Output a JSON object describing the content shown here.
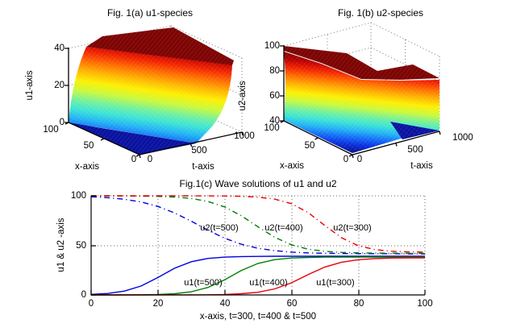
{
  "figure": {
    "fig_a": {
      "title": "Fig. 1(a) u1-species",
      "zlabel": "u1-axis",
      "xlabel": "x-axis",
      "tlabel": "t-axis",
      "zticks": [
        "0",
        "20",
        "40"
      ],
      "xticks": [
        "100",
        "50",
        "0"
      ],
      "tticks": [
        "0",
        "500",
        "1000"
      ]
    },
    "fig_b": {
      "title": "Fig. 1(b) u2-species",
      "zlabel": "u2-axis",
      "xlabel": "x-axis",
      "tlabel": "t-axis",
      "zticks": [
        "40",
        "60",
        "80",
        "100"
      ],
      "xticks": [
        "100",
        "50",
        "0"
      ],
      "tticks": [
        "0",
        "500",
        "1000"
      ]
    },
    "fig_c": {
      "title": "Fig.1(c) Wave solutions of u1 and u2",
      "ylabel": "u1 & u2 -axis",
      "xlabel": "x-axis,  t=300, t=400 &  t=500",
      "yticks": [
        "0",
        "50",
        "100"
      ],
      "xticks": [
        "0",
        "20",
        "40",
        "60",
        "80",
        "100"
      ],
      "curve_labels": [
        "u2(t=500)",
        "u2(t=400)",
        "u2(t=300)",
        "u1(t=500)",
        "u1(t=400)",
        "u1(t=300)"
      ]
    }
  },
  "chart_data": [
    {
      "type": "heatmap",
      "subtype": "3d-surface",
      "title": "Fig. 1(a) u1-species",
      "xlabel": "x-axis",
      "tlabel": "t-axis",
      "zlabel": "u1-axis",
      "xlim": [
        0,
        100
      ],
      "tlim": [
        0,
        1000
      ],
      "zlim": [
        0,
        40
      ],
      "xticks": [
        0,
        50,
        100
      ],
      "tticks": [
        0,
        500,
        1000
      ],
      "zticks": [
        0,
        20,
        40
      ],
      "colormap": "jet",
      "grid": true,
      "description": "Traveling wavefront surface: u1 rises from 0 (blue floor, front) through a sigmoid cliff to a plateau of 40 (dark red, back)."
    },
    {
      "type": "heatmap",
      "subtype": "3d-surface",
      "title": "Fig. 1(b) u2-species",
      "xlabel": "x-axis",
      "tlabel": "t-axis",
      "zlabel": "u2-axis",
      "xlim": [
        0,
        100
      ],
      "tlim": [
        0,
        1000
      ],
      "zlim": [
        40,
        100
      ],
      "xticks": [
        0,
        50,
        100
      ],
      "tticks": [
        0,
        500,
        1000
      ],
      "zticks": [
        40,
        60,
        80,
        100
      ],
      "colormap": "jet",
      "grid": true,
      "description": "Traveling wavefront surface: u2 decreases from a plateau of 100 (dark red, back) through a sigmoid cliff to 40 (blue floor, front right)."
    },
    {
      "type": "line",
      "title": "Fig.1(c) Wave solutions of u1 and u2",
      "xlabel": "x-axis,  t=300, t=400 &  t=500",
      "ylabel": "u1 & u2 -axis",
      "xlim": [
        0,
        100
      ],
      "ylim": [
        0,
        100
      ],
      "xticks": [
        0,
        20,
        40,
        60,
        80,
        100
      ],
      "yticks": [
        0,
        50,
        100
      ],
      "grid": true,
      "legend_position": "inline-annotations",
      "x": [
        0,
        5,
        10,
        15,
        20,
        25,
        30,
        35,
        40,
        45,
        50,
        55,
        60,
        65,
        70,
        75,
        80,
        85,
        90,
        95,
        100
      ],
      "series": [
        {
          "name": "u2(t=500)",
          "color": "#0000e0",
          "style": "dashdot",
          "values": [
            99.0,
            98.1,
            96.5,
            93.8,
            89.3,
            82.8,
            74.4,
            65.3,
            57.2,
            51.1,
            47.1,
            44.6,
            43.2,
            42.4,
            42.0,
            41.8,
            41.7,
            41.6,
            41.6,
            41.5,
            41.5
          ]
        },
        {
          "name": "u2(t=400)",
          "color": "#008000",
          "style": "dashdot",
          "values": [
            100,
            100,
            99.9,
            99.7,
            99.4,
            98.8,
            97.3,
            94.3,
            88.8,
            79.9,
            68.7,
            58.2,
            50.6,
            46.2,
            44.0,
            42.9,
            42.4,
            42.2,
            42.1,
            42.0,
            42.0
          ]
        },
        {
          "name": "u2(t=300)",
          "color": "#e80000",
          "style": "dashdot",
          "values": [
            100,
            100,
            100,
            100,
            100,
            100,
            100,
            99.9,
            99.8,
            99.5,
            98.7,
            96.7,
            92.1,
            83.1,
            70.1,
            57.7,
            49.7,
            45.8,
            44.1,
            43.4,
            43.2
          ]
        },
        {
          "name": "u1(t=500)",
          "color": "#0000e0",
          "style": "solid",
          "values": [
            0.6,
            1.5,
            3.9,
            9.0,
            17.6,
            26.9,
            33.5,
            36.8,
            38.1,
            38.7,
            38.9,
            39.0,
            39.0,
            39.0,
            39.0,
            39.0,
            39.0,
            39.0,
            39.0,
            39.0,
            39.0
          ]
        },
        {
          "name": "u1(t=400)",
          "color": "#008000",
          "style": "solid",
          "values": [
            0,
            0,
            0.1,
            0.2,
            0.5,
            1.2,
            3.2,
            7.6,
            15.3,
            24.7,
            31.8,
            35.6,
            37.2,
            37.8,
            38.1,
            38.1,
            38.2,
            38.2,
            38.2,
            38.2,
            38.2
          ]
        },
        {
          "name": "u1(t=300)",
          "color": "#e80000",
          "style": "solid",
          "values": [
            0,
            0,
            0,
            0,
            0.1,
            0.1,
            0.1,
            0.2,
            0.5,
            1.2,
            2.7,
            6.1,
            12.2,
            20.5,
            28.1,
            33.0,
            35.5,
            36.7,
            37.2,
            37.4,
            37.4
          ]
        }
      ],
      "accent_colors": {
        "blue": "#0000e0",
        "green": "#008000",
        "red": "#e80000"
      }
    }
  ]
}
